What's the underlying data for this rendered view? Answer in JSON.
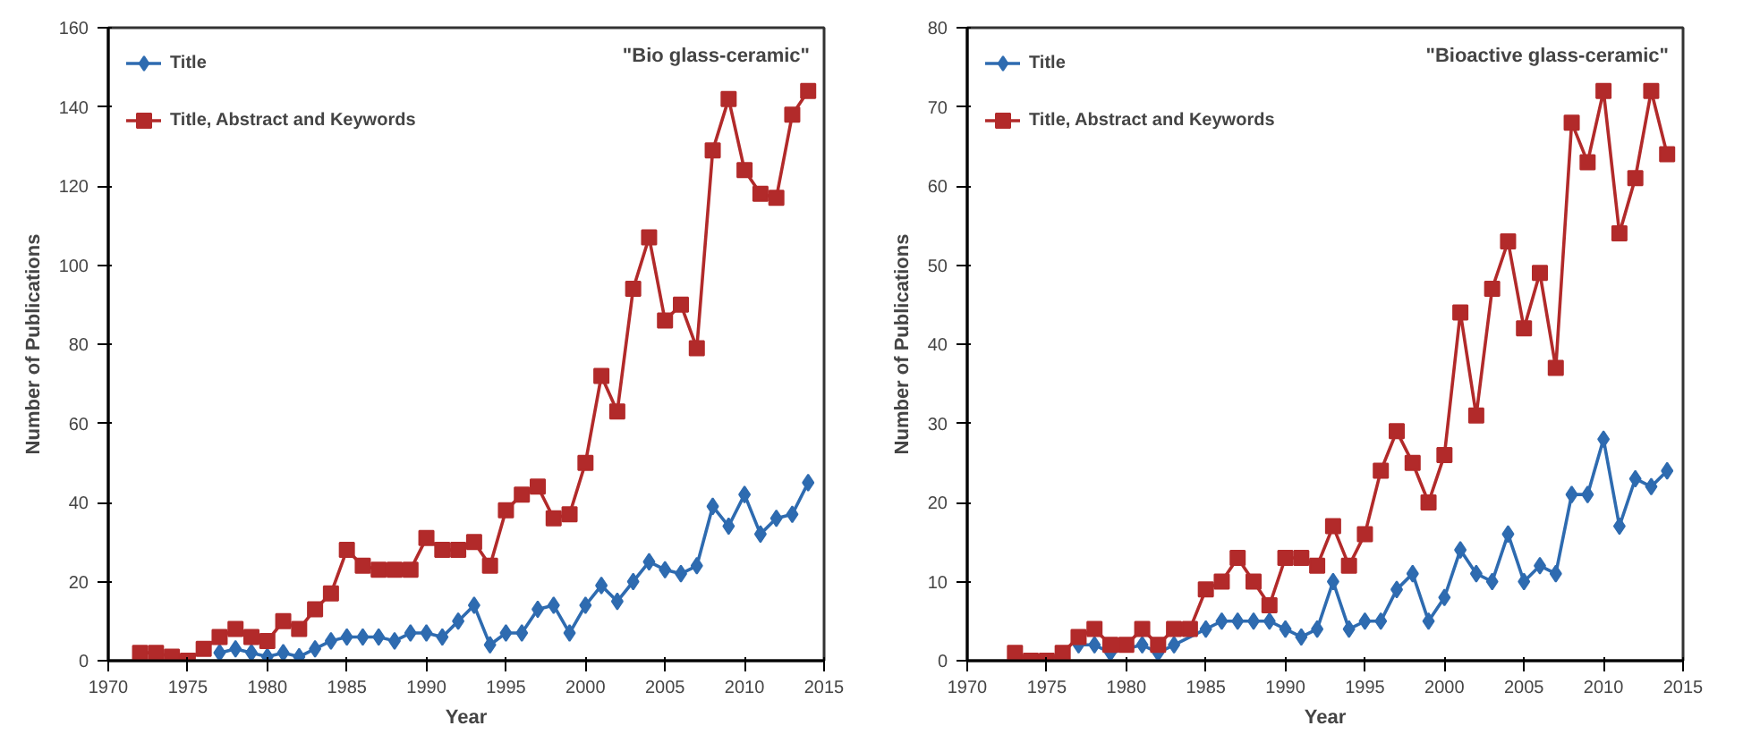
{
  "chart_data": [
    {
      "type": "line",
      "xlabel": "Year",
      "ylabel": "Number of Publications",
      "annotations": [
        "\"Bio glass-ceramic\""
      ],
      "xlim": [
        1970,
        2015
      ],
      "xticks": [
        1970,
        1975,
        1980,
        1985,
        1990,
        1995,
        2000,
        2005,
        2010,
        2015
      ],
      "ylim": [
        0,
        160
      ],
      "yticks": [
        0,
        20,
        40,
        60,
        80,
        100,
        120,
        140,
        160
      ],
      "grid": false,
      "legend": "top left",
      "line_style": "solid",
      "series": [
        {
          "name": "Title",
          "color": "#2e6bb0",
          "marker": "diamond",
          "x": [
            1977,
            1978,
            1979,
            1980,
            1981,
            1982,
            1983,
            1984,
            1985,
            1986,
            1987,
            1988,
            1989,
            1990,
            1991,
            1992,
            1993,
            1994,
            1995,
            1996,
            1997,
            1998,
            1999,
            2000,
            2001,
            2002,
            2003,
            2004,
            2005,
            2006,
            2007,
            2008,
            2009,
            2010,
            2011,
            2012,
            2013,
            2014
          ],
          "values": [
            2,
            3,
            2,
            1,
            2,
            1,
            3,
            5,
            6,
            6,
            6,
            5,
            7,
            7,
            6,
            10,
            14,
            4,
            7,
            7,
            13,
            14,
            7,
            14,
            19,
            15,
            20,
            25,
            23,
            22,
            24,
            39,
            34,
            42,
            32,
            36,
            37,
            45
          ]
        },
        {
          "name": "Title, Abstract and Keywords",
          "color": "#b22a2a",
          "marker": "square",
          "x": [
            1972,
            1973,
            1974,
            1975,
            1976,
            1977,
            1978,
            1979,
            1980,
            1981,
            1982,
            1983,
            1984,
            1985,
            1986,
            1987,
            1988,
            1989,
            1990,
            1991,
            1992,
            1993,
            1994,
            1995,
            1996,
            1997,
            1998,
            1999,
            2000,
            2001,
            2002,
            2003,
            2004,
            2005,
            2006,
            2007,
            2008,
            2009,
            2010,
            2011,
            2012,
            2013,
            2014
          ],
          "values": [
            2,
            2,
            1,
            0,
            3,
            6,
            8,
            6,
            5,
            10,
            8,
            13,
            17,
            28,
            24,
            23,
            23,
            23,
            31,
            28,
            28,
            30,
            24,
            38,
            42,
            44,
            36,
            37,
            50,
            72,
            63,
            94,
            107,
            86,
            90,
            79,
            129,
            142,
            124,
            118,
            117,
            138,
            144
          ]
        }
      ]
    },
    {
      "type": "line",
      "xlabel": "Year",
      "ylabel": "Number of Publications",
      "annotations": [
        "\"Bioactive glass-ceramic\""
      ],
      "xlim": [
        1970,
        2015
      ],
      "xticks": [
        1970,
        1975,
        1980,
        1985,
        1990,
        1995,
        2000,
        2005,
        2010,
        2015
      ],
      "ylim": [
        0,
        80
      ],
      "yticks": [
        0,
        10,
        20,
        30,
        40,
        50,
        60,
        70,
        80
      ],
      "grid": false,
      "legend": "top left",
      "line_style": "solid",
      "series": [
        {
          "name": "Title",
          "color": "#2e6bb0",
          "marker": "diamond",
          "x": [
            1977,
            1978,
            1979,
            1981,
            1982,
            1983,
            1985,
            1986,
            1987,
            1988,
            1989,
            1990,
            1991,
            1992,
            1993,
            1994,
            1995,
            1996,
            1997,
            1998,
            1999,
            2000,
            2001,
            2002,
            2003,
            2004,
            2005,
            2006,
            2007,
            2008,
            2009,
            2010,
            2011,
            2012,
            2013,
            2014
          ],
          "values": [
            2,
            2,
            1,
            2,
            1,
            2,
            4,
            5,
            5,
            5,
            5,
            4,
            3,
            4,
            10,
            4,
            5,
            5,
            9,
            11,
            5,
            8,
            14,
            11,
            10,
            16,
            10,
            12,
            11,
            21,
            21,
            28,
            17,
            23,
            22,
            24
          ]
        },
        {
          "name": "Title, Abstract and Keywords",
          "color": "#b22a2a",
          "marker": "square",
          "x": [
            1973,
            1974,
            1975,
            1976,
            1977,
            1978,
            1979,
            1980,
            1981,
            1982,
            1983,
            1984,
            1985,
            1986,
            1987,
            1988,
            1989,
            1990,
            1991,
            1992,
            1993,
            1994,
            1995,
            1996,
            1997,
            1998,
            1999,
            2000,
            2001,
            2002,
            2003,
            2004,
            2005,
            2006,
            2007,
            2008,
            2009,
            2010,
            2011,
            2012,
            2013,
            2014
          ],
          "values": [
            1,
            0,
            0,
            1,
            3,
            4,
            2,
            2,
            4,
            2,
            4,
            4,
            9,
            10,
            13,
            10,
            7,
            13,
            13,
            12,
            17,
            12,
            16,
            24,
            29,
            25,
            20,
            26,
            44,
            31,
            47,
            53,
            42,
            49,
            37,
            68,
            63,
            72,
            54,
            61,
            72,
            64
          ]
        }
      ]
    }
  ]
}
